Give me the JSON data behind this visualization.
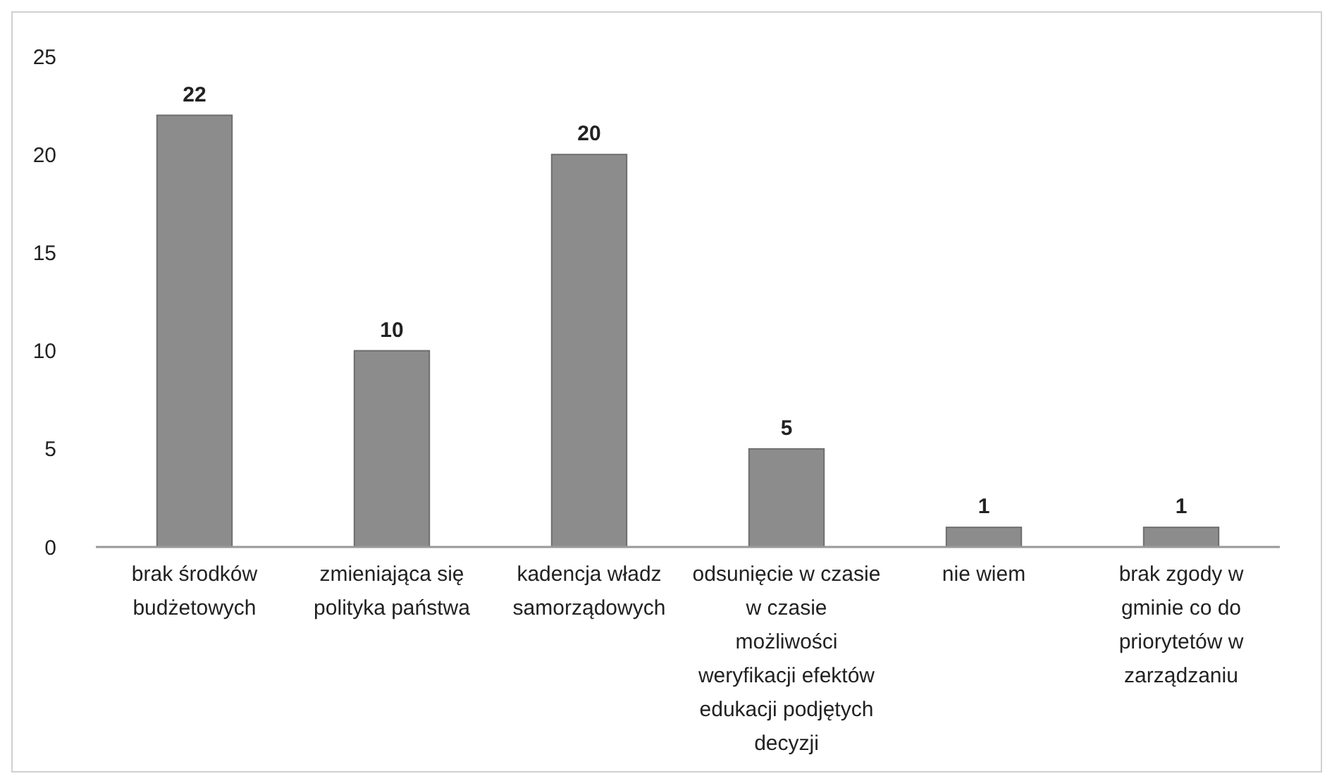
{
  "chart_data": {
    "type": "bar",
    "categories": [
      "brak środków budżetowych",
      "zmieniająca się polityka państwa",
      "kadencja władz samorządowych",
      "odsunięcie w czasie w czasie możliwości weryfikacji efektów edukacji podjętych decyzji",
      "nie wiem",
      "brak zgody w gminie co do priorytetów w zarządzaniu"
    ],
    "values": [
      22,
      10,
      20,
      5,
      1,
      1
    ],
    "color": "#8c8c8c",
    "ylim": [
      0,
      25
    ],
    "yticks": [
      0,
      5,
      10,
      15,
      20,
      25
    ],
    "grid": false,
    "data_labels": true
  }
}
